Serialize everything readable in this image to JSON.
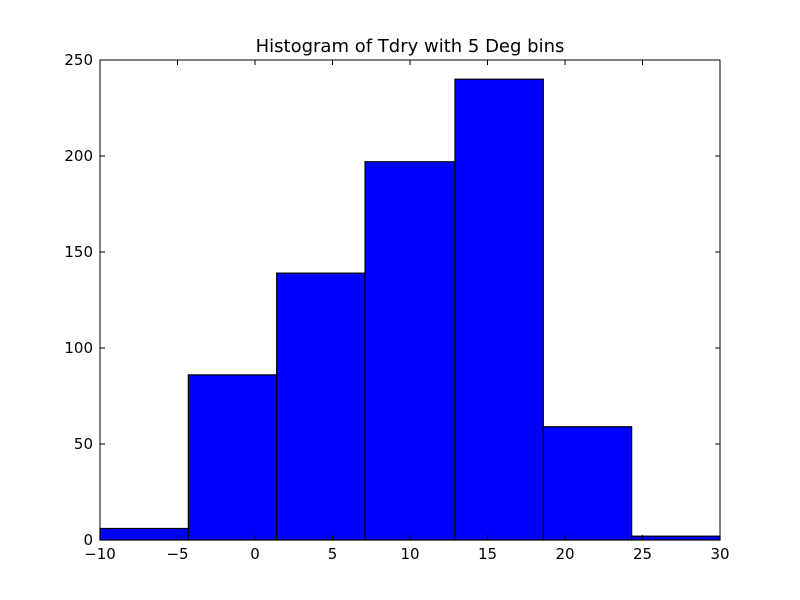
{
  "chart_data": {
    "type": "bar",
    "title": "Histogram of Tdry with 5 Deg bins",
    "xlabel": "",
    "ylabel": "",
    "xlim": [
      -10,
      30
    ],
    "ylim": [
      0,
      250
    ],
    "grid": false,
    "bins": [
      {
        "x_start": -10.0,
        "x_end": -4.3,
        "count": 6
      },
      {
        "x_start": -4.3,
        "x_end": 1.4,
        "count": 86
      },
      {
        "x_start": 1.4,
        "x_end": 7.1,
        "count": 139
      },
      {
        "x_start": 7.1,
        "x_end": 12.9,
        "count": 197
      },
      {
        "x_start": 12.9,
        "x_end": 18.6,
        "count": 240
      },
      {
        "x_start": 18.6,
        "x_end": 24.3,
        "count": 59
      },
      {
        "x_start": 24.3,
        "x_end": 30.0,
        "count": 2
      }
    ],
    "x_ticks": [
      {
        "value": -10,
        "label": "−10"
      },
      {
        "value": -5,
        "label": "−5"
      },
      {
        "value": 0,
        "label": "0"
      },
      {
        "value": 5,
        "label": "5"
      },
      {
        "value": 10,
        "label": "10"
      },
      {
        "value": 15,
        "label": "15"
      },
      {
        "value": 20,
        "label": "20"
      },
      {
        "value": 25,
        "label": "25"
      },
      {
        "value": 30,
        "label": "30"
      }
    ],
    "y_ticks": [
      {
        "value": 0,
        "label": "0"
      },
      {
        "value": 50,
        "label": "50"
      },
      {
        "value": 100,
        "label": "100"
      },
      {
        "value": 150,
        "label": "150"
      },
      {
        "value": 200,
        "label": "200"
      },
      {
        "value": 250,
        "label": "250"
      }
    ],
    "colors": {
      "bar_fill": "#0000ff",
      "bar_edge": "#000000",
      "axes": "#000000",
      "background": "#ffffff"
    }
  }
}
